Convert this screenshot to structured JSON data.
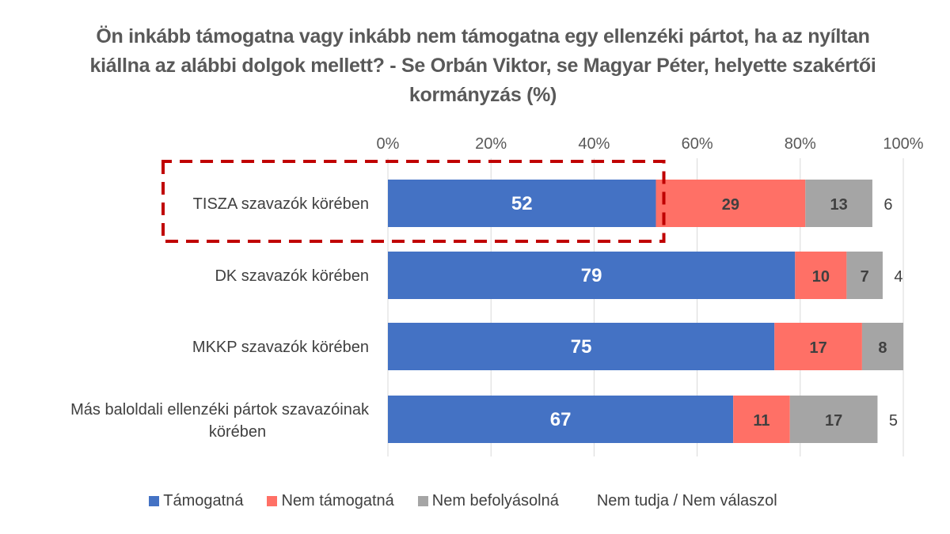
{
  "chart_data": {
    "type": "bar",
    "orientation": "horizontal",
    "stacked": true,
    "title": "Ön inkább támogatna vagy inkább nem támogatna egy ellenzéki pártot, ha az nyíltan kiállna az alábbi dolgok mellett? - Se Orbán Viktor, se Magyar Péter, helyette szakértői kormányzás (%)",
    "categories": [
      "TISZA szavazók körében",
      "DK szavazók körében",
      "MKKP szavazók körében",
      "Más baloldali ellenzéki pártok szavazóinak körében"
    ],
    "series": [
      {
        "name": "Támogatná",
        "color": "#4472c4",
        "label_color": "#ffffff",
        "values": [
          52,
          79,
          75,
          67
        ]
      },
      {
        "name": "Nem támogatná",
        "color": "#ff7066",
        "label_color": "#404040",
        "values": [
          29,
          10,
          17,
          11
        ]
      },
      {
        "name": "Nem befolyásolná",
        "color": "#a5a5a5",
        "label_color": "#404040",
        "values": [
          13,
          7,
          8,
          17
        ]
      },
      {
        "name": "Nem tudja / Nem válaszol",
        "color": "#ffffff",
        "label_color": "#404040",
        "values": [
          6,
          4,
          null,
          5
        ]
      }
    ],
    "xlim": [
      0,
      100
    ],
    "xticks": [
      "0%",
      "20%",
      "40%",
      "60%",
      "80%",
      "100%"
    ],
    "xtick_values": [
      0,
      20,
      40,
      60,
      80,
      100
    ],
    "grid": true,
    "legend_position": "bottom",
    "highlight": {
      "category": "TISZA szavazók körében",
      "style": "dashed",
      "color": "#c00000"
    }
  }
}
